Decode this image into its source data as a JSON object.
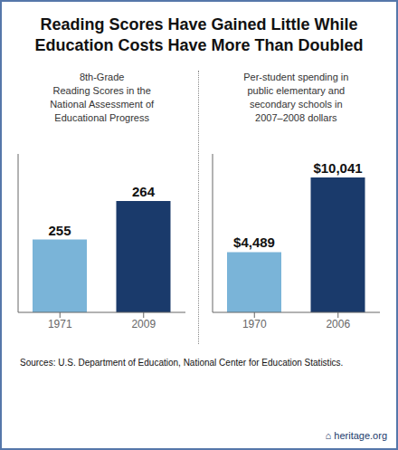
{
  "title": "Reading Scores Have Gained Little While\nEducation Costs Have More Than Doubled",
  "annotations": [
    "Sources: U.S. Department of Education, National Center for Education Statistics.",
    "⌂  heritage.org"
  ],
  "chart_data": [
    {
      "type": "bar",
      "subtitle": "8th-Grade\nReading Scores in the\nNational Assessment of\nEducational Progress",
      "categories": [
        "1971",
        "2009"
      ],
      "values": [
        255,
        264
      ],
      "colors": [
        "#7ab4d8",
        "#1a3a6b"
      ],
      "ylim": [
        238,
        275
      ],
      "data_labels": true,
      "tick_labels": "x",
      "grid": false
    },
    {
      "type": "bar",
      "subtitle": "Per-student spending in\npublic elementary and\nsecondary schools in\n2007–2008 dollars",
      "categories": [
        "1970",
        "2006"
      ],
      "values": [
        4489,
        10041
      ],
      "value_labels": [
        "$4,489",
        "$10,041"
      ],
      "colors": [
        "#7ab4d8",
        "#1a3a6b"
      ],
      "ylim": [
        0,
        11800
      ],
      "data_labels": true,
      "tick_labels": "x",
      "grid": false
    }
  ]
}
